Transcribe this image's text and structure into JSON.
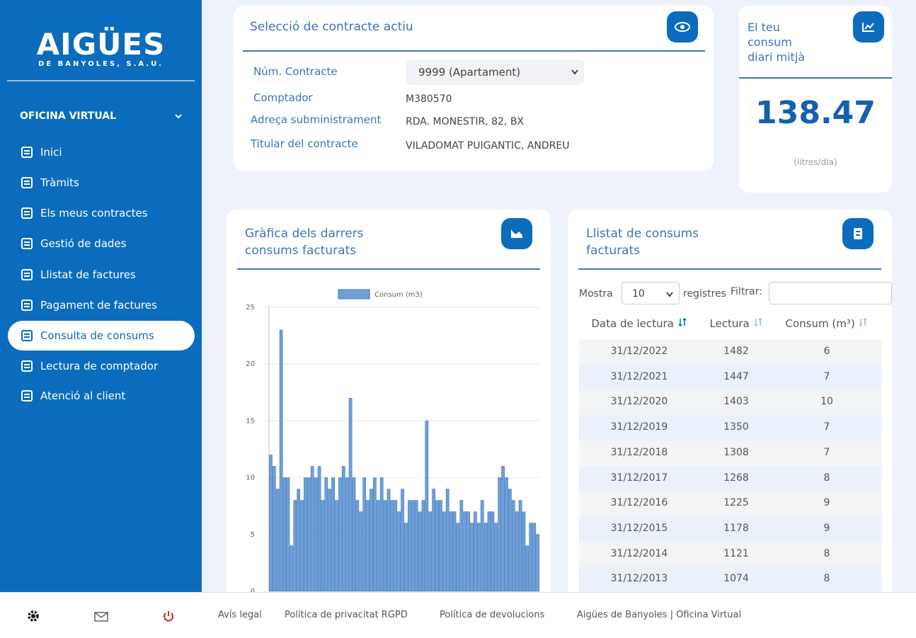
{
  "sidebar": {
    "logo": "AIGÜES",
    "logo_subtitle": "DE BANYOLES, S.A.U.",
    "section": "OFICINA VIRTUAL",
    "menu": [
      "Inici",
      "Tràmits",
      "Els meus contractes",
      "Gestió de dades",
      "Llistat de factures",
      "Pagament de factures",
      "Consulta de consums",
      "Lectura de comptador",
      "Atenció al client"
    ]
  },
  "contract": {
    "title": "Selecció de contracte actiu",
    "fields": [
      {
        "label": "Núm. Contracte",
        "value": "9999 (Apartament)"
      },
      {
        "label": "Comptador",
        "value": "M380570"
      },
      {
        "label": "Adreça subministrament",
        "value": "RDA. MONESTIR, 82, BX"
      },
      {
        "label": "Titular del contracte",
        "value": "VILADOMAT PUIGANTIC, ANDREU"
      }
    ]
  },
  "average": {
    "title": "El teu consum diari mitjà",
    "value": 138.47,
    "unit": "(litres/dia)"
  },
  "chart_data": {
    "type": "bar",
    "title": "Gràfica dels darrers consums facturats",
    "series": [
      {
        "name": "Consum (m3)",
        "color": "#6f9fd6",
        "values": [
          12,
          11,
          9,
          23,
          10,
          10,
          4,
          8,
          9,
          8,
          10,
          10,
          11,
          10,
          11,
          8,
          10,
          9,
          10,
          8,
          10,
          11,
          10,
          17,
          10,
          8,
          7,
          10,
          8,
          9,
          10,
          8,
          10,
          8,
          9,
          8,
          8,
          7,
          9,
          6,
          8,
          8,
          8,
          7,
          8,
          15,
          7,
          9,
          8,
          8,
          7,
          9,
          7,
          7,
          6,
          8,
          7,
          7,
          6,
          7,
          6,
          8,
          6,
          7,
          7,
          6,
          10,
          11,
          10,
          9,
          8,
          7,
          8,
          7,
          4,
          6,
          6,
          5
        ]
      }
    ],
    "ylim": [
      0,
      25
    ],
    "yticks": [
      0,
      5,
      10,
      15,
      20,
      25
    ],
    "grid": true
  },
  "table": {
    "title": "Llistat de consums facturats",
    "show_label": "Mostra",
    "page_size": "10",
    "records_label": "registres",
    "filter_label": "Filtrar:",
    "columns": [
      "Data de lectura",
      "Lectura",
      "Consum (m³)"
    ],
    "rows": [
      [
        "31/12/2022",
        1482,
        6
      ],
      [
        "31/12/2021",
        1447,
        7
      ],
      [
        "31/12/2020",
        1403,
        10
      ],
      [
        "31/12/2019",
        1350,
        7
      ],
      [
        "31/12/2018",
        1308,
        7
      ],
      [
        "31/12/2017",
        1268,
        8
      ],
      [
        "31/12/2016",
        1225,
        9
      ],
      [
        "31/12/2015",
        1178,
        9
      ],
      [
        "31/12/2014",
        1121,
        8
      ],
      [
        "31/12/2013",
        1074,
        8
      ]
    ]
  },
  "footer": {
    "links": [
      "Avís legal",
      "Política de privacitat RGPD",
      "Política de devolucions",
      "Aigües de Banyoles | Oficina Virtual"
    ]
  }
}
